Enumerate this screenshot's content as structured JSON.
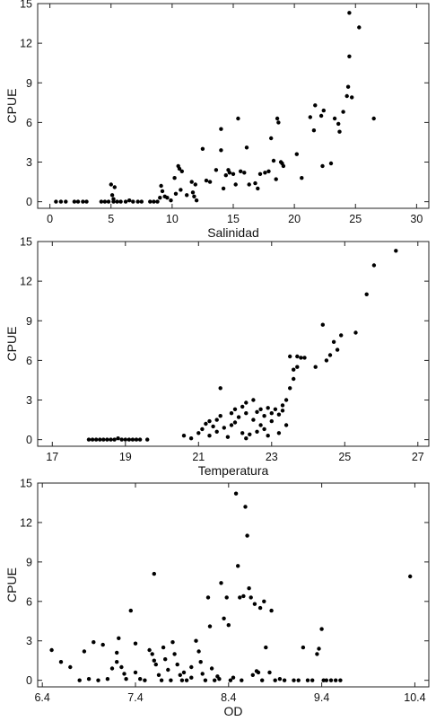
{
  "chart_data": [
    {
      "type": "scatter",
      "title": "",
      "xlabel": "Salinidad",
      "ylabel": "CPUE",
      "xlim": [
        -1,
        31
      ],
      "ylim": [
        -0.5,
        15
      ],
      "xticks": [
        0,
        5,
        10,
        15,
        20,
        25,
        30
      ],
      "yticks": [
        0,
        3,
        6,
        9,
        12,
        15
      ],
      "grid": false,
      "points": [
        [
          0.5,
          0
        ],
        [
          0.9,
          0
        ],
        [
          1.3,
          0
        ],
        [
          2.0,
          0
        ],
        [
          2.3,
          0
        ],
        [
          2.7,
          0
        ],
        [
          3.0,
          0
        ],
        [
          4.2,
          0
        ],
        [
          4.5,
          0
        ],
        [
          4.8,
          0
        ],
        [
          5.0,
          1.3
        ],
        [
          5.1,
          0.5
        ],
        [
          5.2,
          0.2
        ],
        [
          5.3,
          1.1
        ],
        [
          5.5,
          0
        ],
        [
          5.2,
          0
        ],
        [
          5.8,
          0
        ],
        [
          6.2,
          0
        ],
        [
          6.5,
          0.1
        ],
        [
          6.8,
          0
        ],
        [
          7.2,
          0
        ],
        [
          7.5,
          0
        ],
        [
          8.2,
          0
        ],
        [
          8.5,
          0
        ],
        [
          8.8,
          0
        ],
        [
          9.0,
          0.3
        ],
        [
          9.1,
          1.2
        ],
        [
          9.2,
          0.8
        ],
        [
          9.4,
          0.4
        ],
        [
          9.6,
          0.3
        ],
        [
          9.9,
          0.1
        ],
        [
          10.2,
          1.8
        ],
        [
          10.3,
          0.6
        ],
        [
          10.5,
          2.7
        ],
        [
          10.6,
          2.5
        ],
        [
          10.7,
          0.9
        ],
        [
          10.8,
          2.3
        ],
        [
          11.2,
          0.5
        ],
        [
          11.6,
          1.5
        ],
        [
          11.7,
          0.7
        ],
        [
          11.8,
          0.4
        ],
        [
          11.9,
          1.3
        ],
        [
          12.0,
          0.1
        ],
        [
          12.5,
          4.0
        ],
        [
          12.8,
          1.6
        ],
        [
          13.1,
          1.5
        ],
        [
          13.6,
          2.4
        ],
        [
          14.0,
          5.5
        ],
        [
          14.0,
          3.9
        ],
        [
          14.2,
          1.0
        ],
        [
          14.4,
          2.0
        ],
        [
          14.6,
          2.4
        ],
        [
          14.7,
          2.2
        ],
        [
          15.0,
          2.1
        ],
        [
          15.2,
          1.3
        ],
        [
          15.4,
          6.3
        ],
        [
          15.6,
          2.3
        ],
        [
          15.9,
          2.2
        ],
        [
          16.1,
          4.1
        ],
        [
          16.3,
          1.3
        ],
        [
          16.8,
          1.4
        ],
        [
          17.0,
          1.0
        ],
        [
          17.2,
          2.1
        ],
        [
          17.6,
          2.2
        ],
        [
          17.9,
          2.3
        ],
        [
          18.1,
          4.8
        ],
        [
          18.3,
          3.1
        ],
        [
          18.5,
          1.7
        ],
        [
          18.6,
          6.3
        ],
        [
          18.7,
          6.0
        ],
        [
          18.9,
          3.0
        ],
        [
          19.0,
          2.9
        ],
        [
          19.1,
          2.7
        ],
        [
          20.2,
          3.6
        ],
        [
          20.6,
          1.8
        ],
        [
          21.3,
          6.4
        ],
        [
          21.6,
          5.4
        ],
        [
          21.7,
          7.3
        ],
        [
          22.2,
          6.5
        ],
        [
          22.3,
          2.7
        ],
        [
          22.4,
          6.9
        ],
        [
          23.0,
          2.9
        ],
        [
          23.3,
          6.3
        ],
        [
          23.6,
          5.9
        ],
        [
          23.7,
          5.3
        ],
        [
          24.0,
          6.8
        ],
        [
          24.3,
          8.0
        ],
        [
          24.4,
          8.7
        ],
        [
          24.5,
          11.0
        ],
        [
          24.5,
          14.3
        ],
        [
          24.7,
          7.9
        ],
        [
          25.3,
          13.2
        ],
        [
          26.5,
          6.3
        ]
      ]
    },
    {
      "type": "scatter",
      "title": "",
      "xlabel": "Temperatura",
      "ylabel": "CPUE",
      "xlim": [
        16.6,
        27.3
      ],
      "ylim": [
        -0.5,
        15
      ],
      "xticks": [
        17,
        19,
        21,
        23,
        25,
        27
      ],
      "yticks": [
        0,
        3,
        6,
        9,
        12,
        15
      ],
      "grid": false,
      "points": [
        [
          18.0,
          0
        ],
        [
          18.1,
          0
        ],
        [
          18.2,
          0
        ],
        [
          18.3,
          0
        ],
        [
          18.4,
          0
        ],
        [
          18.5,
          0
        ],
        [
          18.6,
          0
        ],
        [
          18.7,
          0
        ],
        [
          18.8,
          0.1
        ],
        [
          18.9,
          0
        ],
        [
          19.0,
          0
        ],
        [
          19.1,
          0
        ],
        [
          19.2,
          0
        ],
        [
          19.3,
          0
        ],
        [
          19.4,
          0
        ],
        [
          19.6,
          0
        ],
        [
          20.6,
          0.3
        ],
        [
          20.8,
          0.1
        ],
        [
          21.0,
          0.5
        ],
        [
          21.1,
          0.8
        ],
        [
          21.2,
          1.2
        ],
        [
          21.3,
          1.4
        ],
        [
          21.3,
          0.3
        ],
        [
          21.4,
          1.0
        ],
        [
          21.5,
          1.5
        ],
        [
          21.5,
          0.6
        ],
        [
          21.6,
          1.8
        ],
        [
          21.6,
          3.9
        ],
        [
          21.7,
          0.9
        ],
        [
          21.8,
          0.2
        ],
        [
          21.9,
          1.1
        ],
        [
          21.9,
          2.0
        ],
        [
          22.0,
          2.3
        ],
        [
          22.0,
          1.3
        ],
        [
          22.1,
          1.7
        ],
        [
          22.2,
          0.5
        ],
        [
          22.2,
          2.5
        ],
        [
          22.3,
          0.1
        ],
        [
          22.3,
          2.8
        ],
        [
          22.3,
          2.0
        ],
        [
          22.4,
          0.4
        ],
        [
          22.5,
          3.0
        ],
        [
          22.5,
          1.5
        ],
        [
          22.6,
          2.1
        ],
        [
          22.6,
          0.6
        ],
        [
          22.7,
          2.3
        ],
        [
          22.7,
          1.1
        ],
        [
          22.8,
          1.8
        ],
        [
          22.8,
          0.8
        ],
        [
          22.9,
          2.4
        ],
        [
          22.9,
          0.3
        ],
        [
          23.0,
          2.0
        ],
        [
          23.0,
          1.4
        ],
        [
          23.1,
          2.3
        ],
        [
          23.2,
          0.5
        ],
        [
          23.2,
          1.9
        ],
        [
          23.3,
          2.2
        ],
        [
          23.3,
          2.6
        ],
        [
          23.4,
          1.1
        ],
        [
          23.4,
          3.0
        ],
        [
          23.5,
          3.9
        ],
        [
          23.5,
          6.3
        ],
        [
          23.6,
          4.6
        ],
        [
          23.6,
          5.3
        ],
        [
          23.7,
          5.5
        ],
        [
          23.7,
          6.3
        ],
        [
          23.8,
          6.2
        ],
        [
          23.9,
          6.2
        ],
        [
          24.2,
          5.5
        ],
        [
          24.4,
          8.7
        ],
        [
          24.5,
          6.0
        ],
        [
          24.6,
          6.4
        ],
        [
          24.7,
          7.4
        ],
        [
          24.8,
          6.8
        ],
        [
          24.9,
          7.9
        ],
        [
          25.3,
          8.1
        ],
        [
          25.6,
          11.0
        ],
        [
          25.8,
          13.2
        ],
        [
          26.4,
          14.3
        ]
      ]
    },
    {
      "type": "scatter",
      "title": "",
      "xlabel": "OD",
      "ylabel": "CPUE",
      "xlim": [
        6.35,
        10.55
      ],
      "ylim": [
        -0.5,
        15
      ],
      "xticks": [
        6.4,
        7.4,
        8.4,
        9.4,
        10.4
      ],
      "xtick_labels": [
        "6.4",
        "7.4",
        "8.4",
        "9.4",
        "10.4"
      ],
      "yticks": [
        0,
        3,
        6,
        9,
        12,
        15
      ],
      "grid": false,
      "points": [
        [
          6.5,
          2.3
        ],
        [
          6.6,
          1.4
        ],
        [
          6.7,
          1.0
        ],
        [
          6.8,
          0
        ],
        [
          6.85,
          2.2
        ],
        [
          6.9,
          0.1
        ],
        [
          6.95,
          2.9
        ],
        [
          7.0,
          0
        ],
        [
          7.05,
          2.7
        ],
        [
          7.1,
          0.1
        ],
        [
          7.15,
          0.9
        ],
        [
          7.2,
          2.1
        ],
        [
          7.2,
          1.4
        ],
        [
          7.22,
          3.2
        ],
        [
          7.25,
          1.0
        ],
        [
          7.28,
          0.5
        ],
        [
          7.3,
          0.1
        ],
        [
          7.35,
          5.3
        ],
        [
          7.4,
          2.8
        ],
        [
          7.4,
          0.6
        ],
        [
          7.45,
          0.1
        ],
        [
          7.5,
          0
        ],
        [
          7.55,
          2.3
        ],
        [
          7.58,
          2.0
        ],
        [
          7.6,
          8.1
        ],
        [
          7.6,
          1.5
        ],
        [
          7.62,
          1.2
        ],
        [
          7.65,
          0.4
        ],
        [
          7.68,
          0
        ],
        [
          7.7,
          2.5
        ],
        [
          7.72,
          1.6
        ],
        [
          7.75,
          0.8
        ],
        [
          7.78,
          0
        ],
        [
          7.8,
          2.9
        ],
        [
          7.82,
          2.0
        ],
        [
          7.85,
          1.2
        ],
        [
          7.88,
          0.4
        ],
        [
          7.9,
          0
        ],
        [
          7.92,
          0.6
        ],
        [
          7.95,
          0
        ],
        [
          8.0,
          1.0
        ],
        [
          8.0,
          0.2
        ],
        [
          8.05,
          3.0
        ],
        [
          8.08,
          2.2
        ],
        [
          8.1,
          1.4
        ],
        [
          8.12,
          0.5
        ],
        [
          8.15,
          0
        ],
        [
          8.18,
          6.3
        ],
        [
          8.2,
          4.1
        ],
        [
          8.22,
          0.9
        ],
        [
          8.25,
          0
        ],
        [
          8.28,
          0.3
        ],
        [
          8.3,
          0.1
        ],
        [
          8.32,
          7.4
        ],
        [
          8.35,
          4.7
        ],
        [
          8.38,
          6.3
        ],
        [
          8.4,
          4.2
        ],
        [
          8.42,
          0
        ],
        [
          8.45,
          0.2
        ],
        [
          8.48,
          14.2
        ],
        [
          8.5,
          8.7
        ],
        [
          8.52,
          6.3
        ],
        [
          8.54,
          0
        ],
        [
          8.56,
          6.4
        ],
        [
          8.58,
          13.2
        ],
        [
          8.6,
          11.0
        ],
        [
          8.62,
          7.0
        ],
        [
          8.64,
          6.3
        ],
        [
          8.66,
          0.4
        ],
        [
          8.68,
          5.8
        ],
        [
          8.7,
          0.7
        ],
        [
          8.72,
          0.6
        ],
        [
          8.74,
          5.5
        ],
        [
          8.76,
          0
        ],
        [
          8.78,
          6.0
        ],
        [
          8.8,
          2.5
        ],
        [
          8.84,
          0.6
        ],
        [
          8.86,
          5.3
        ],
        [
          8.9,
          0
        ],
        [
          8.95,
          0.1
        ],
        [
          9.0,
          0
        ],
        [
          9.1,
          0
        ],
        [
          9.15,
          0
        ],
        [
          9.2,
          2.5
        ],
        [
          9.25,
          0
        ],
        [
          9.3,
          0
        ],
        [
          9.35,
          2.0
        ],
        [
          9.37,
          2.4
        ],
        [
          9.4,
          3.9
        ],
        [
          9.42,
          0
        ],
        [
          9.45,
          0
        ],
        [
          9.5,
          0
        ],
        [
          9.55,
          0
        ],
        [
          9.6,
          0
        ],
        [
          10.35,
          7.9
        ]
      ]
    }
  ]
}
